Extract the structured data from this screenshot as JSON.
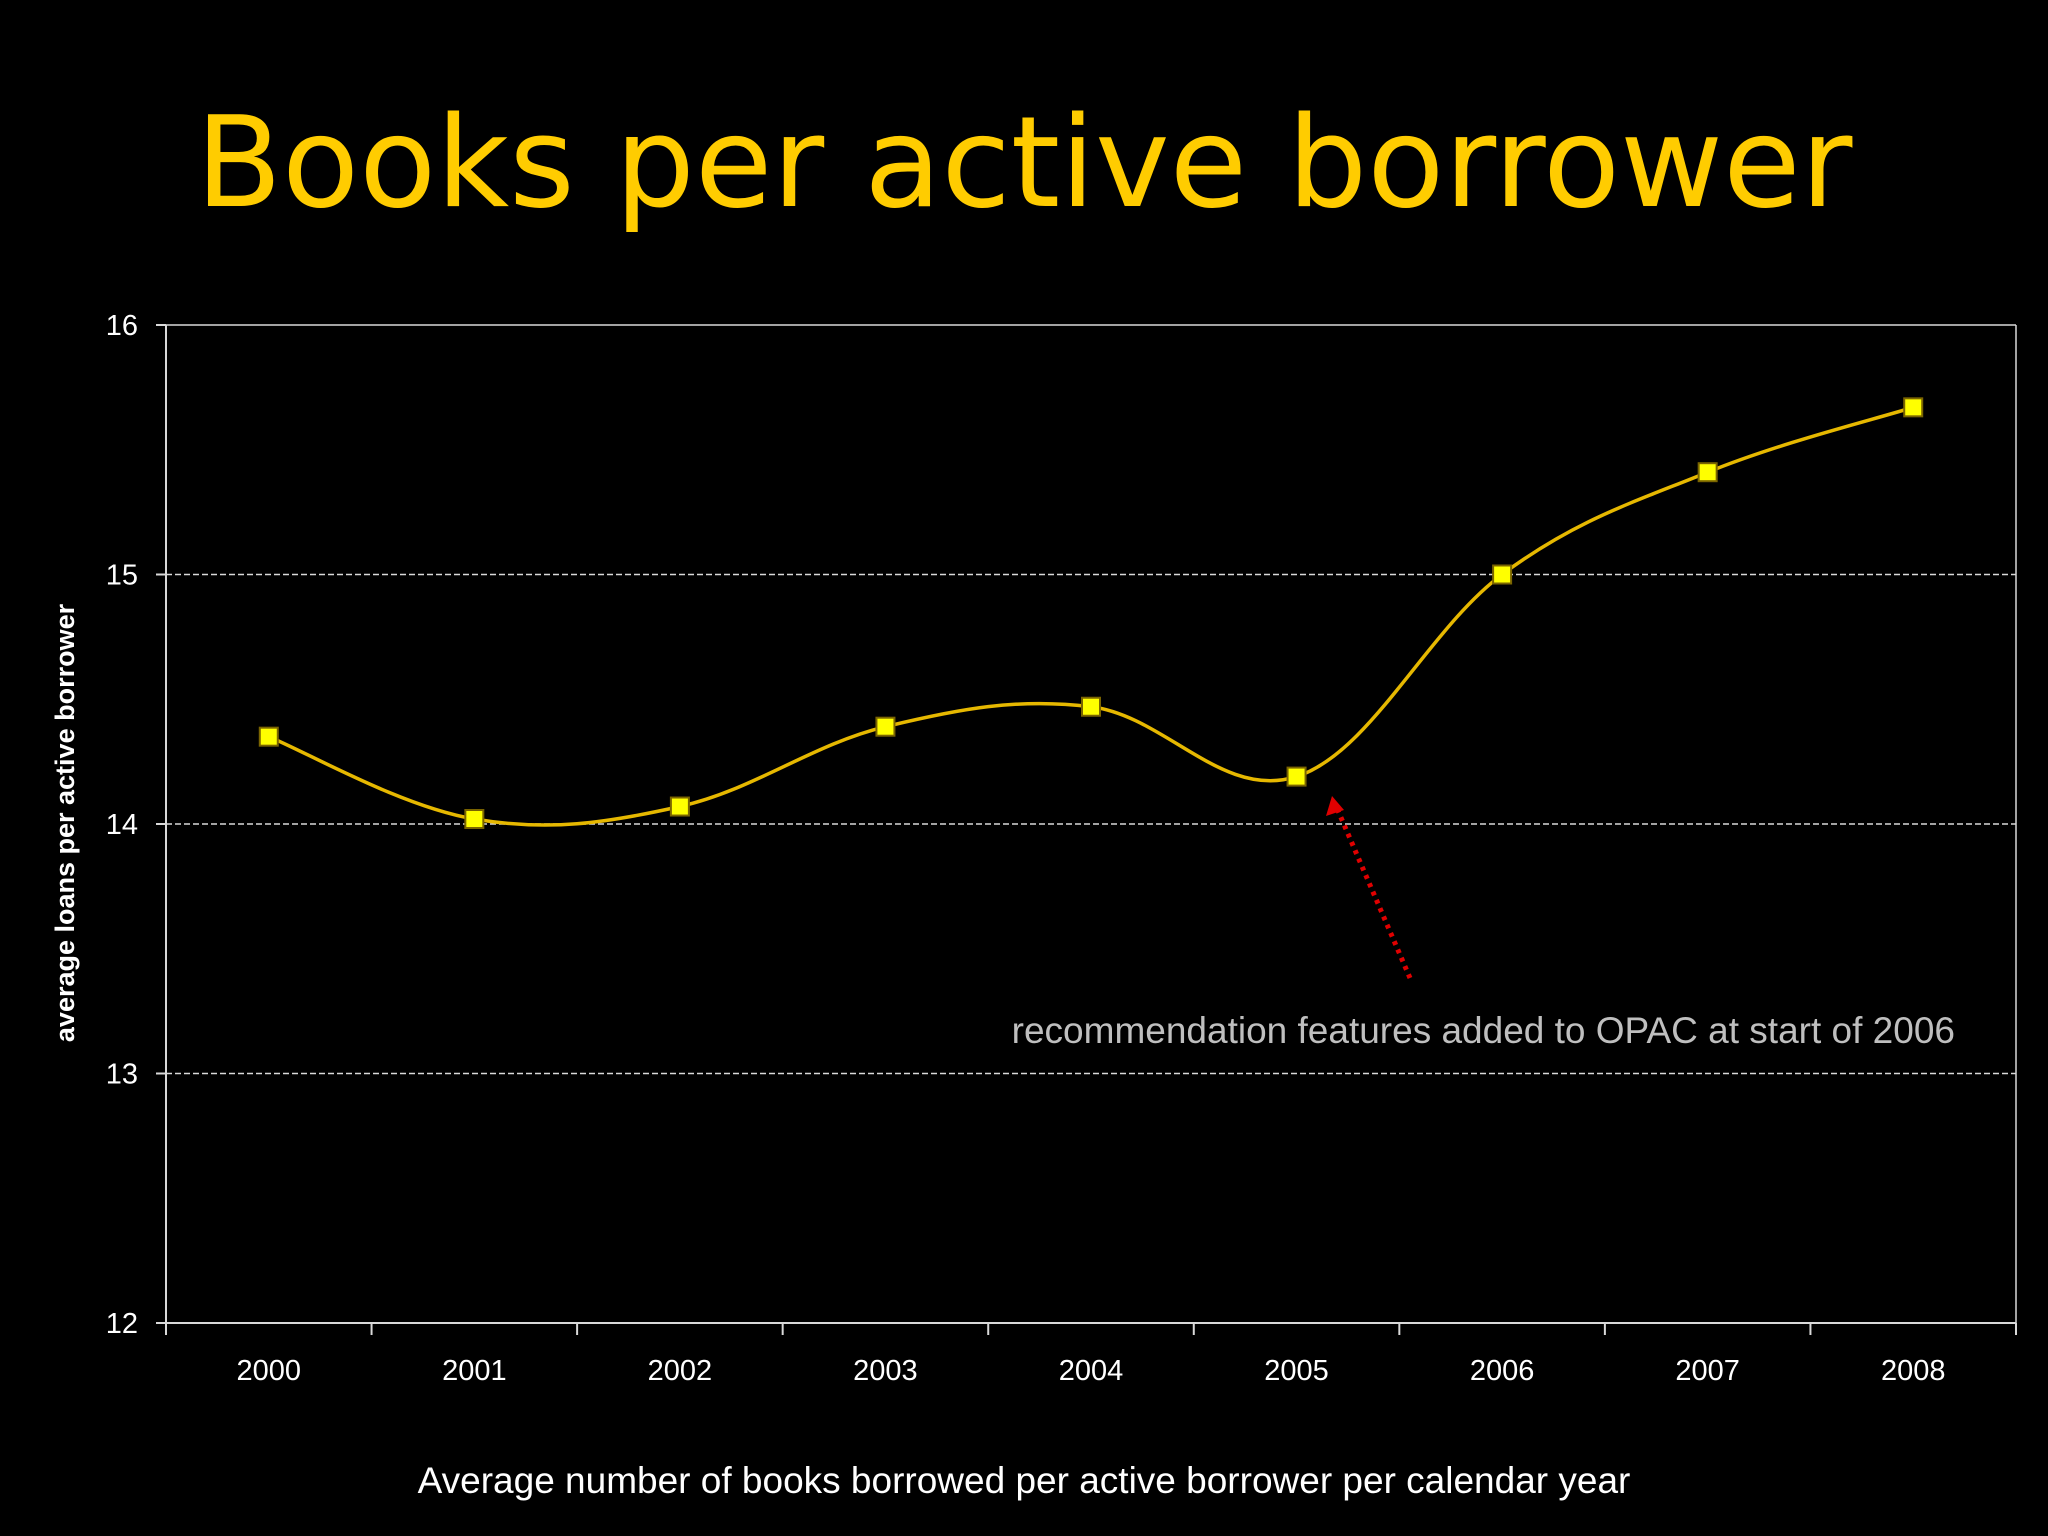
{
  "slide": {
    "title": "Books per active borrower",
    "caption": "Average number of books borrowed per active borrower per calendar year"
  },
  "colors": {
    "background": "#000000",
    "title": "#FFCC00",
    "line": "#E6B800",
    "marker_fill": "#FFFF00",
    "marker_stroke": "#7A6400",
    "axis": "#D9D9D9",
    "gridline": "#D9D9D9",
    "tick_label": "#FFFFFF",
    "annotation_text": "#BFBFBF",
    "annotation_arrow": "#E00000"
  },
  "chart_data": {
    "type": "line",
    "categories": [
      "2000",
      "2001",
      "2002",
      "2003",
      "2004",
      "2005",
      "2006",
      "2007",
      "2008"
    ],
    "series": [
      {
        "values": [
          14.35,
          14.02,
          14.07,
          14.39,
          14.47,
          14.19,
          15.0,
          15.41,
          15.67
        ],
        "smoothed": true,
        "marker": "square"
      }
    ],
    "xlabel": "",
    "ylabel": "average loans per active borrower",
    "ylim": [
      12,
      16
    ],
    "yticks": [
      "12",
      "13",
      "14",
      "15",
      "16"
    ],
    "grid": "horizontal dashed",
    "legend": "none",
    "annotation": {
      "text": "recommendation features added to OPAC at start of 2006",
      "arrow_points_to": "between 2005 and 2006 at 14.1"
    }
  }
}
